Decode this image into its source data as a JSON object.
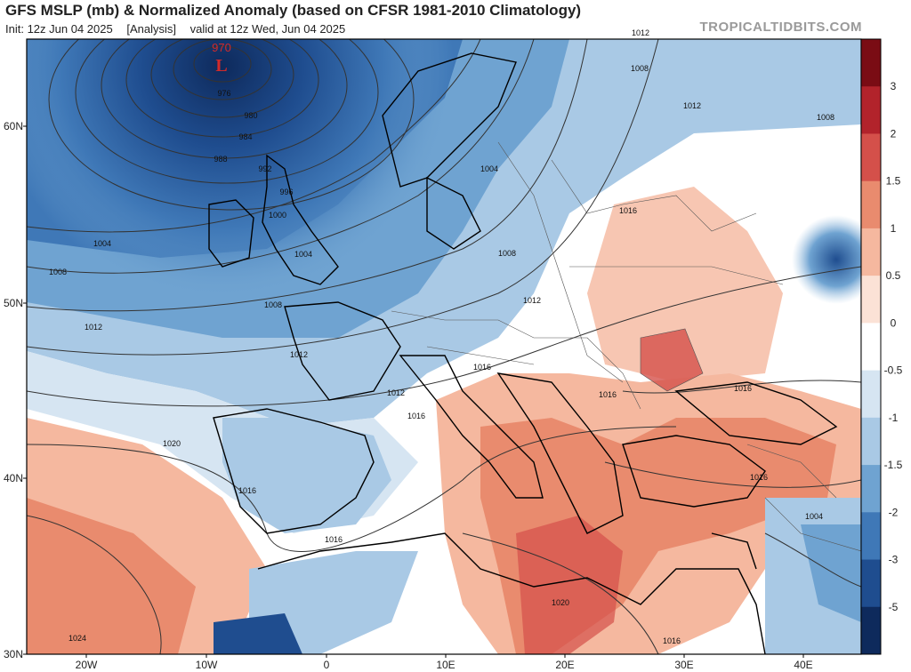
{
  "header": {
    "title": "GFS MSLP (mb) & Normalized Anomaly (based on CFSR 1981-2010 Climatology)",
    "init": "Init: 12z Jun 04 2025",
    "mode": "[Analysis]",
    "valid": "valid at 12z Wed, Jun 04 2025",
    "brand": "TROPICALTIDBITS.COM"
  },
  "axes": {
    "lat_labels": [
      "60N",
      "50N",
      "40N",
      "30N"
    ],
    "lon_labels": [
      "20W",
      "10W",
      "0",
      "10E",
      "20E",
      "30E",
      "40E"
    ]
  },
  "colorbar": {
    "labels": [
      "3",
      "2",
      "1.5",
      "1",
      "0.5",
      "0",
      "-0.5",
      "-1",
      "-1.5",
      "-2",
      "-3",
      "-5"
    ],
    "colors": [
      "#7a0c14",
      "#b2232b",
      "#d4504a",
      "#e98b6e",
      "#f5b89f",
      "#fbe2d6",
      "#ffffff",
      "#d6e5f2",
      "#a9c9e5",
      "#6fa3d1",
      "#3f78b7",
      "#1f4d8f",
      "#0e2a5c"
    ]
  },
  "low": {
    "pressure": "970",
    "symbol": "L",
    "color": "#d12a2a"
  },
  "isobar_labels": [
    "976",
    "980",
    "984",
    "988",
    "992",
    "996",
    "1000",
    "1004",
    "1004",
    "1004",
    "1008",
    "1008",
    "1008",
    "1008",
    "1008",
    "1012",
    "1012",
    "1012",
    "1012",
    "1012",
    "1012",
    "1016",
    "1016",
    "1016",
    "1016",
    "1016",
    "1016",
    "1016",
    "1016",
    "1016",
    "1020",
    "1020",
    "1024",
    "1004"
  ]
}
